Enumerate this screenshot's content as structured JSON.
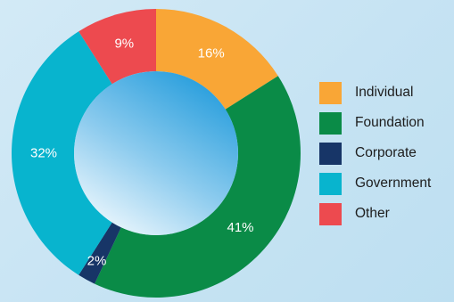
{
  "chart_data": {
    "type": "pie",
    "donut": true,
    "categories": [
      "Individual",
      "Foundation",
      "Corporate",
      "Government",
      "Other"
    ],
    "values": [
      16,
      41,
      2,
      32,
      9
    ],
    "labels": [
      "16%",
      "41%",
      "2%",
      "32%",
      "9%"
    ],
    "colors": [
      "#f9a636",
      "#0a8b47",
      "#173567",
      "#08b4ce",
      "#ed4a4f"
    ],
    "legend_position": "right"
  }
}
